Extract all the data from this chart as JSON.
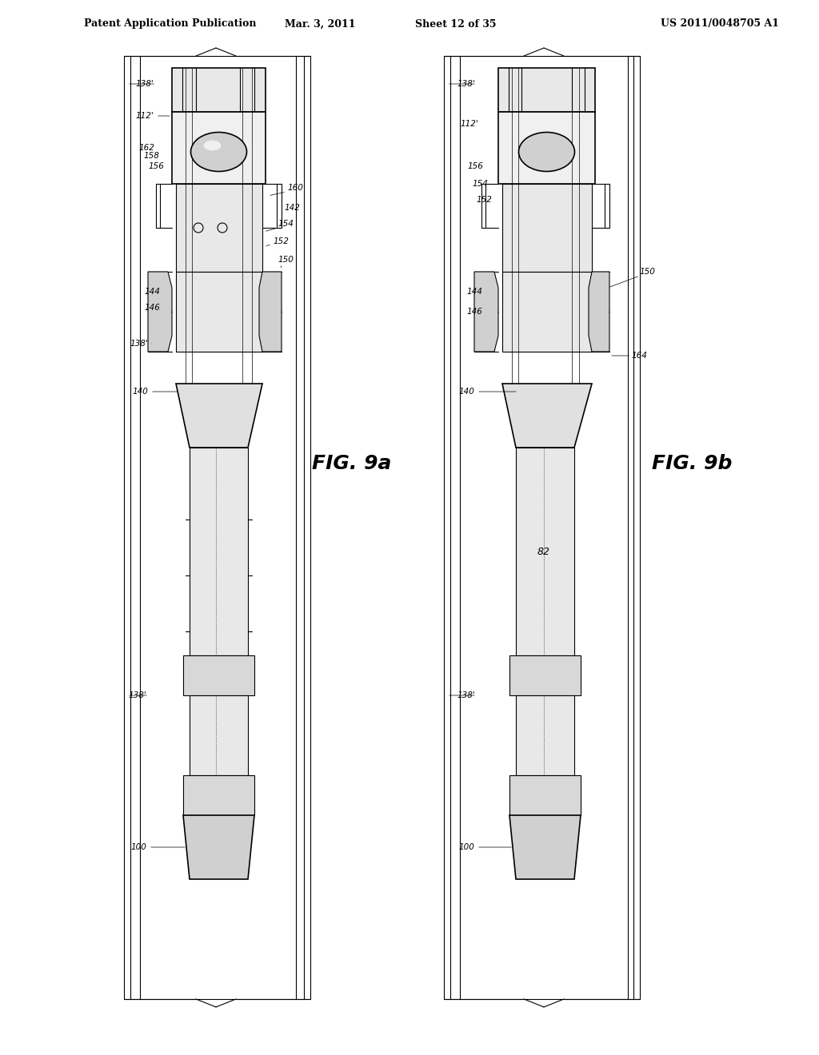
{
  "bg_color": "#ffffff",
  "line_color": "#000000",
  "header_text": "Patent Application Publication",
  "header_date": "Mar. 3, 2011",
  "header_sheet": "Sheet 12 of 35",
  "header_patent": "US 2011/0048705 A1",
  "fig_a_label": "FIG. 9a",
  "fig_b_label": "FIG. 9b",
  "labels_a": [
    "138'",
    "112'",
    "162",
    "158",
    "156",
    "144",
    "146",
    "138'",
    "140",
    "138'",
    "100",
    "160",
    "142",
    "154",
    "152",
    "150"
  ],
  "labels_b": [
    "138'",
    "112'",
    "156",
    "154",
    "152",
    "144",
    "146",
    "164",
    "140",
    "82",
    "138'",
    "100",
    "150"
  ]
}
